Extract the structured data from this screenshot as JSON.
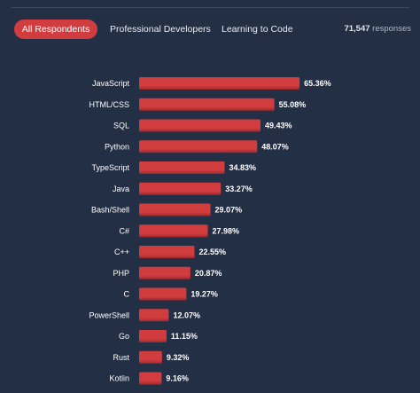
{
  "tabs": [
    {
      "label": "All Respondents",
      "active": true
    },
    {
      "label": "Professional Developers",
      "active": false
    },
    {
      "label": "Learning to Code",
      "active": false
    }
  ],
  "responses": {
    "count": "71,547",
    "label": "responses"
  },
  "colors": {
    "bar": "#d13c3f",
    "bar_dark": "#9e2a2d",
    "background": "#232f45",
    "accent": "#d13c3f"
  },
  "chart_data": {
    "type": "bar",
    "orientation": "horizontal",
    "categories": [
      "JavaScript",
      "HTML/CSS",
      "SQL",
      "Python",
      "TypeScript",
      "Java",
      "Bash/Shell",
      "C#",
      "C++",
      "PHP",
      "C",
      "PowerShell",
      "Go",
      "Rust",
      "Kotlin"
    ],
    "values": [
      65.36,
      55.08,
      49.43,
      48.07,
      34.83,
      33.27,
      29.07,
      27.98,
      22.55,
      20.87,
      19.27,
      12.07,
      11.15,
      9.32,
      9.16
    ],
    "value_labels": [
      "65.36%",
      "55.08%",
      "49.43%",
      "48.07%",
      "34.83%",
      "33.27%",
      "29.07%",
      "27.98%",
      "22.55%",
      "20.87%",
      "19.27%",
      "12.07%",
      "11.15%",
      "9.32%",
      "9.16%"
    ],
    "xlim": [
      0,
      100
    ],
    "grid": false,
    "legend": "none"
  }
}
